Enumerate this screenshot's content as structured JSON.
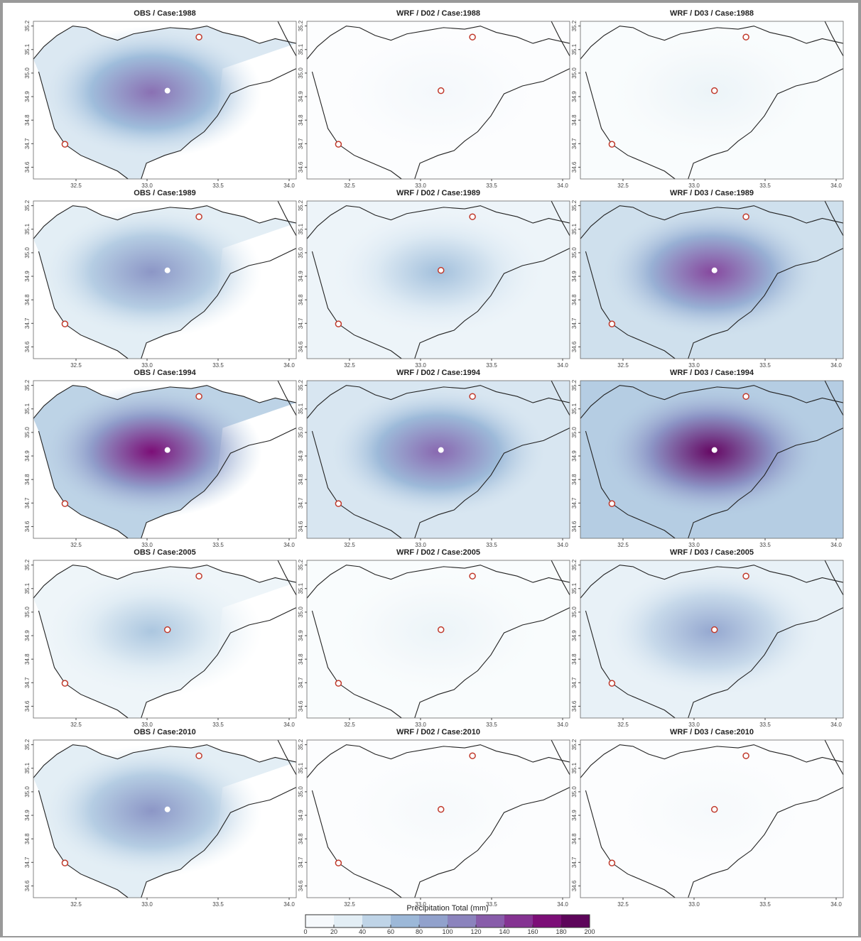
{
  "panels": [
    {
      "title": "OBS / Case:1988"
    },
    {
      "title": "WRF / D02 / Case:1988"
    },
    {
      "title": "WRF / D03 / Case:1988"
    },
    {
      "title": "OBS / Case:1989"
    },
    {
      "title": "WRF / D02 / Case:1989"
    },
    {
      "title": "WRF / D03 / Case:1989"
    },
    {
      "title": "OBS / Case:1994"
    },
    {
      "title": "WRF / D02 / Case:1994"
    },
    {
      "title": "WRF / D03 / Case:1994"
    },
    {
      "title": "OBS / Case:2005"
    },
    {
      "title": "WRF / D02 / Case:2005"
    },
    {
      "title": "WRF / D03 / Case:2005"
    },
    {
      "title": "OBS / Case:2010"
    },
    {
      "title": "WRF / D02 / Case:2010"
    },
    {
      "title": "WRF / D03 / Case:2010"
    }
  ],
  "map_axes": {
    "xlim": [
      32.2,
      34.05
    ],
    "xticks": [
      32.5,
      {
        "value": 33,
        "label": "33.0"
      },
      33.5,
      {
        "value": 34,
        "label": "34.0"
      }
    ],
    "ylim": [
      34.55,
      35.22
    ],
    "yticks": [
      34.6,
      34.7,
      34.8,
      34.9,
      {
        "value": 35,
        "label": "35.0"
      },
      35.1,
      35.2
    ]
  },
  "colorbar": {
    "title": "Precipitation Total (mm)",
    "range": [
      0,
      200
    ],
    "ticks": [
      0,
      20,
      40,
      60,
      80,
      100,
      120,
      140,
      160,
      180,
      200
    ]
  }
}
